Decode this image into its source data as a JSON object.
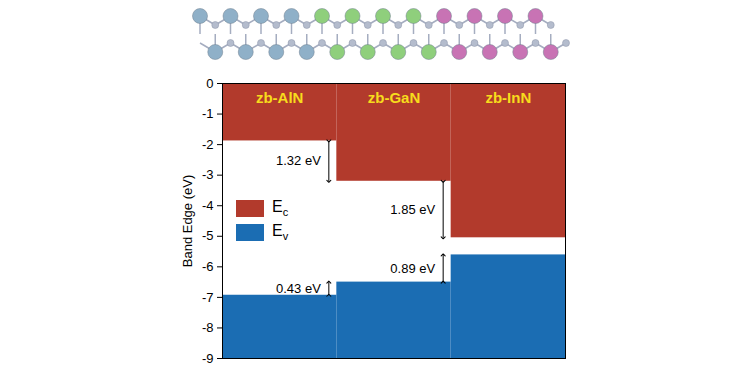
{
  "chart_data": {
    "type": "bar",
    "ylabel": "Band Edge (eV)",
    "categories": [
      "zb-AlN",
      "zb-GaN",
      "zb-InN"
    ],
    "series": [
      {
        "name": "Ec",
        "color": "#b23a2c",
        "values": [
          -1.88,
          -3.2,
          -5.05
        ]
      },
      {
        "name": "Ev",
        "color": "#1b6db3",
        "values": [
          -6.93,
          -6.5,
          -5.61
        ]
      }
    ],
    "ylim": [
      -9,
      0
    ],
    "yticks": [
      -9,
      -8,
      -7,
      -6,
      -5,
      -4,
      -3,
      -2,
      -1,
      0
    ],
    "grid": false,
    "legend": "center left",
    "tick_labels": "y",
    "annotations": [
      {
        "text": "1.32 eV",
        "series": "Ec",
        "between": [
          "zb-AlN",
          "zb-GaN"
        ]
      },
      {
        "text": "1.85 eV",
        "series": "Ec",
        "between": [
          "zb-GaN",
          "zb-InN"
        ]
      },
      {
        "text": "0.43 eV",
        "series": "Ev",
        "between": [
          "zb-AlN",
          "zb-GaN"
        ]
      },
      {
        "text": "0.89 eV",
        "series": "Ev",
        "between": [
          "zb-GaN",
          "zb-InN"
        ]
      }
    ]
  }
}
